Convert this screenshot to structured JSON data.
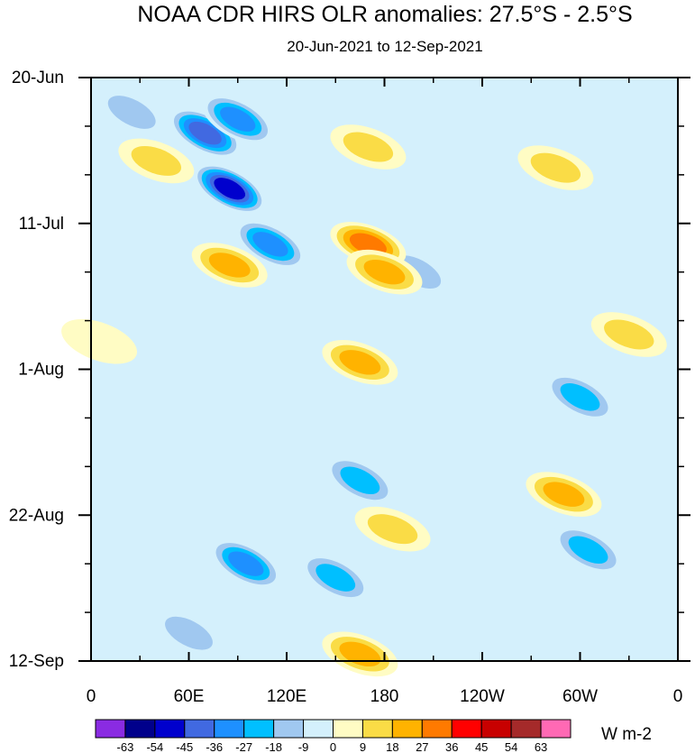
{
  "chart_data": {
    "type": "heatmap",
    "title": "NOAA CDR HIRS OLR anomalies: 27.5°S - 2.5°S",
    "subtitle": "20-Jun-2021 to 12-Sep-2021",
    "x_ticks": [
      "0",
      "60E",
      "120E",
      "180",
      "120W",
      "60W",
      "0"
    ],
    "x_tick_values": [
      0,
      60,
      120,
      180,
      240,
      300,
      360
    ],
    "xlim": [
      0,
      360
    ],
    "y_ticks": [
      "20-Jun",
      "11-Jul",
      "1-Aug",
      "22-Aug",
      "12-Sep"
    ],
    "y_tick_values": [
      0,
      21,
      42,
      63,
      84
    ],
    "ylim": [
      0,
      84
    ],
    "y_direction": "time increases downward",
    "colorbar": {
      "units": "W m-2",
      "levels": [
        "-63",
        "-54",
        "-45",
        "-36",
        "-27",
        "-18",
        "-9",
        "0",
        "9",
        "18",
        "27",
        "36",
        "45",
        "54",
        "63"
      ],
      "level_values": [
        -63,
        -54,
        -45,
        -36,
        -27,
        -18,
        -9,
        0,
        9,
        18,
        27,
        36,
        45,
        54,
        63
      ],
      "colors": [
        "#8a2be2",
        "#00008b",
        "#0000cd",
        "#4169e1",
        "#1e90ff",
        "#00bfff",
        "#a0c8f0",
        "#d4f0fc",
        "#fffcc4",
        "#fadc46",
        "#ffb300",
        "#ff7a00",
        "#ff0000",
        "#c80000",
        "#a52a2a",
        "#ff69b4"
      ]
    },
    "anomaly_features": [
      {
        "lon": 85,
        "day": 16,
        "value": -58
      },
      {
        "lon": 70,
        "day": 8,
        "value": -50
      },
      {
        "lon": 90,
        "day": 6,
        "value": -40
      },
      {
        "lon": 110,
        "day": 24,
        "value": -40
      },
      {
        "lon": 95,
        "day": 70,
        "value": -36
      },
      {
        "lon": 150,
        "day": 72,
        "value": -32
      },
      {
        "lon": 60,
        "day": 80,
        "value": -26
      },
      {
        "lon": 165,
        "day": 58,
        "value": -34
      },
      {
        "lon": 300,
        "day": 46,
        "value": -34
      },
      {
        "lon": 305,
        "day": 68,
        "value": -28
      },
      {
        "lon": 200,
        "day": 28,
        "value": -22
      },
      {
        "lon": 25,
        "day": 5,
        "value": -18
      },
      {
        "lon": 170,
        "day": 24,
        "value": 36
      },
      {
        "lon": 180,
        "day": 28,
        "value": 32
      },
      {
        "lon": 165,
        "day": 41,
        "value": 34
      },
      {
        "lon": 170,
        "day": 10,
        "value": 26
      },
      {
        "lon": 85,
        "day": 27,
        "value": 29
      },
      {
        "lon": 290,
        "day": 60,
        "value": 30
      },
      {
        "lon": 285,
        "day": 13,
        "value": 19
      },
      {
        "lon": 165,
        "day": 83,
        "value": 30
      },
      {
        "lon": 185,
        "day": 65,
        "value": 22
      },
      {
        "lon": 40,
        "day": 12,
        "value": 19
      },
      {
        "lon": 330,
        "day": 37,
        "value": 20
      },
      {
        "lon": 5,
        "day": 38,
        "value": 15
      }
    ]
  }
}
